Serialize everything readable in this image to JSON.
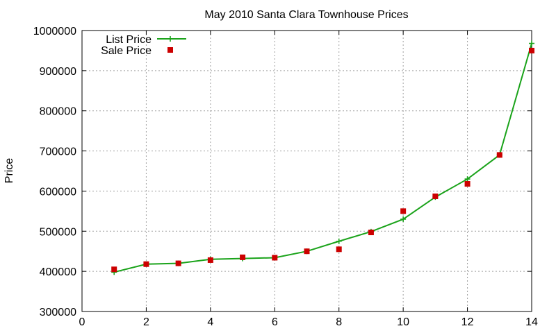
{
  "chart_data": {
    "type": "line",
    "title": "May 2010 Santa Clara Townhouse Prices",
    "xlabel": "",
    "ylabel": "Price",
    "xlim": [
      0,
      14
    ],
    "ylim": [
      300000,
      1000000
    ],
    "x_ticks": [
      "0",
      "2",
      "4",
      "6",
      "8",
      "10",
      "12",
      "14"
    ],
    "y_ticks": [
      "300000",
      "400000",
      "500000",
      "600000",
      "700000",
      "800000",
      "900000",
      "1000000"
    ],
    "grid": true,
    "legend_position": "top-left",
    "series": [
      {
        "name": "List Price",
        "style": "line-with-plus-markers",
        "color": "#1aa31a",
        "x": [
          1,
          2,
          3,
          4,
          5,
          6,
          7,
          8,
          9,
          10,
          11,
          12,
          13,
          14
        ],
        "y": [
          398000,
          418000,
          420000,
          430000,
          432000,
          434000,
          450000,
          475000,
          499000,
          530000,
          585000,
          630000,
          690000,
          968000
        ]
      },
      {
        "name": "Sale Price",
        "style": "square-markers",
        "color": "#cc0000",
        "x": [
          1,
          2,
          3,
          4,
          5,
          6,
          7,
          8,
          9,
          10,
          11,
          12,
          13,
          14
        ],
        "y": [
          405000,
          418000,
          420000,
          428000,
          435000,
          434000,
          450000,
          455000,
          497000,
          550000,
          587000,
          618000,
          690000,
          950000
        ]
      }
    ]
  }
}
